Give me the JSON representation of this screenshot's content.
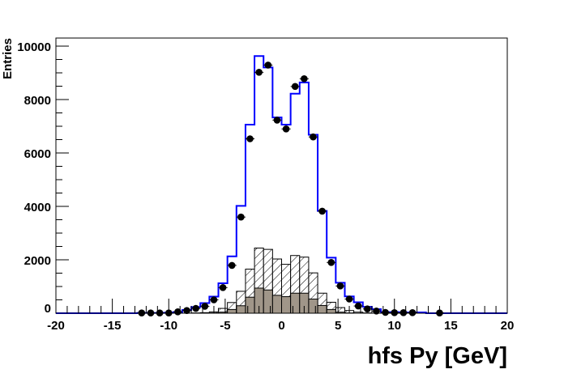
{
  "chart_data": {
    "type": "histogram",
    "xlabel": "hfs Py [GeV]",
    "ylabel": "Entries",
    "xlim": [
      -20,
      20
    ],
    "ylim": [
      0,
      10300
    ],
    "bin_width": 0.8,
    "x_ticks": [
      -20,
      -15,
      -10,
      -5,
      0,
      5,
      10,
      15,
      20
    ],
    "y_ticks": [
      0,
      2000,
      4000,
      6000,
      8000,
      10000
    ],
    "grid": false,
    "colors": {
      "total": "#0000ff",
      "grey_fill": "#a09689",
      "data": "#000000",
      "hatch": "#000000"
    },
    "series": [
      {
        "style": "blue-line-step",
        "x": [
          -12.4,
          -11.6,
          -10.8,
          -10.0,
          -9.2,
          -8.4,
          -7.6,
          -6.8,
          -6.0,
          -5.2,
          -4.4,
          -3.6,
          -2.8,
          -2.0,
          -1.2,
          -0.4,
          0.4,
          1.2,
          2.0,
          2.8,
          3.6,
          4.4,
          5.2,
          6.0,
          6.8,
          7.6,
          8.4,
          9.2,
          10.0,
          10.8,
          11.6,
          12.4
        ],
        "values": [
          10,
          10,
          10,
          20,
          40,
          120,
          230,
          380,
          620,
          1120,
          2130,
          4020,
          7060,
          9630,
          9200,
          7330,
          7060,
          8220,
          8640,
          6680,
          3830,
          2080,
          1140,
          630,
          410,
          240,
          150,
          40,
          40,
          30,
          30,
          30
        ]
      },
      {
        "style": "hatched-fill",
        "x": [
          -7.6,
          -6.8,
          -6.0,
          -5.2,
          -4.4,
          -3.6,
          -2.8,
          -2.0,
          -1.2,
          -0.4,
          0.4,
          1.2,
          2.0,
          2.8,
          3.6,
          4.4,
          5.2,
          6.0,
          6.8,
          7.6
        ],
        "values": [
          10,
          20,
          50,
          180,
          400,
          820,
          1650,
          2440,
          2390,
          2030,
          1830,
          2160,
          2100,
          1510,
          750,
          410,
          210,
          100,
          40,
          10
        ]
      },
      {
        "style": "grey-fill",
        "x": [
          -6.0,
          -5.2,
          -4.4,
          -3.6,
          -2.8,
          -2.0,
          -1.2,
          -0.4,
          0.4,
          1.2,
          2.0,
          2.8,
          3.6,
          4.4,
          5.2,
          6.0
        ],
        "values": [
          10,
          40,
          140,
          280,
          600,
          940,
          870,
          670,
          620,
          750,
          750,
          530,
          290,
          140,
          40,
          10
        ]
      },
      {
        "style": "data-points",
        "x": [
          -12.4,
          -11.6,
          -10.8,
          -10.0,
          -9.2,
          -8.4,
          -7.6,
          -6.8,
          -6.0,
          -5.2,
          -4.4,
          -3.6,
          -2.8,
          -2.0,
          -1.2,
          -0.4,
          0.4,
          1.2,
          2.0,
          2.8,
          3.6,
          4.4,
          5.2,
          6.0,
          6.8,
          7.6,
          8.4,
          9.2,
          10.0,
          10.8,
          11.6,
          14.0
        ],
        "values": [
          10,
          10,
          10,
          10,
          50,
          100,
          180,
          260,
          500,
          960,
          1790,
          3600,
          6530,
          9020,
          9290,
          7230,
          6900,
          8490,
          8780,
          6600,
          3820,
          1900,
          1020,
          530,
          270,
          160,
          80,
          30,
          20,
          20,
          20,
          10
        ]
      }
    ]
  }
}
